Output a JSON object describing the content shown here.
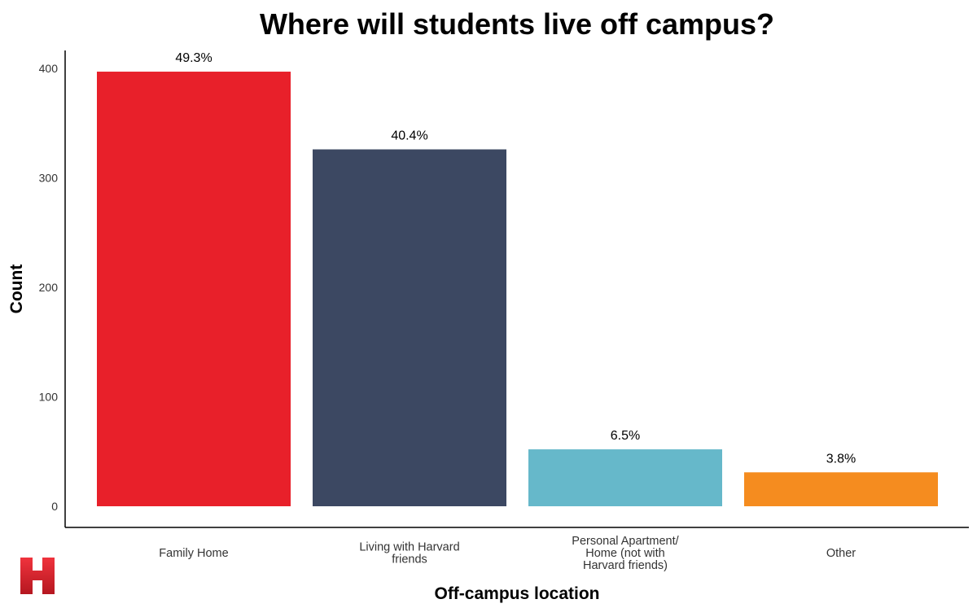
{
  "chart_data": {
    "type": "bar",
    "title": "Where will students live off campus?",
    "xlabel": "Off-campus location",
    "ylabel": "Count",
    "ylim": [
      0,
      420
    ],
    "yticks": [
      0,
      100,
      200,
      300,
      400
    ],
    "grid": false,
    "legend": "none",
    "categories": [
      [
        "Family Home"
      ],
      [
        "Living with Harvard",
        "friends"
      ],
      [
        "Personal Apartment/",
        "Home (not with",
        "Harvard friends)"
      ],
      [
        "Other"
      ]
    ],
    "values": [
      397,
      326,
      52,
      31
    ],
    "data_labels": [
      "49.3%",
      "40.4%",
      "6.5%",
      "3.8%"
    ],
    "colors": [
      "#e8202a",
      "#3c4862",
      "#66b8ca",
      "#f58c1f"
    ]
  },
  "logo": {
    "icon": "harvard-h-logo",
    "color": "#d71f2b"
  }
}
